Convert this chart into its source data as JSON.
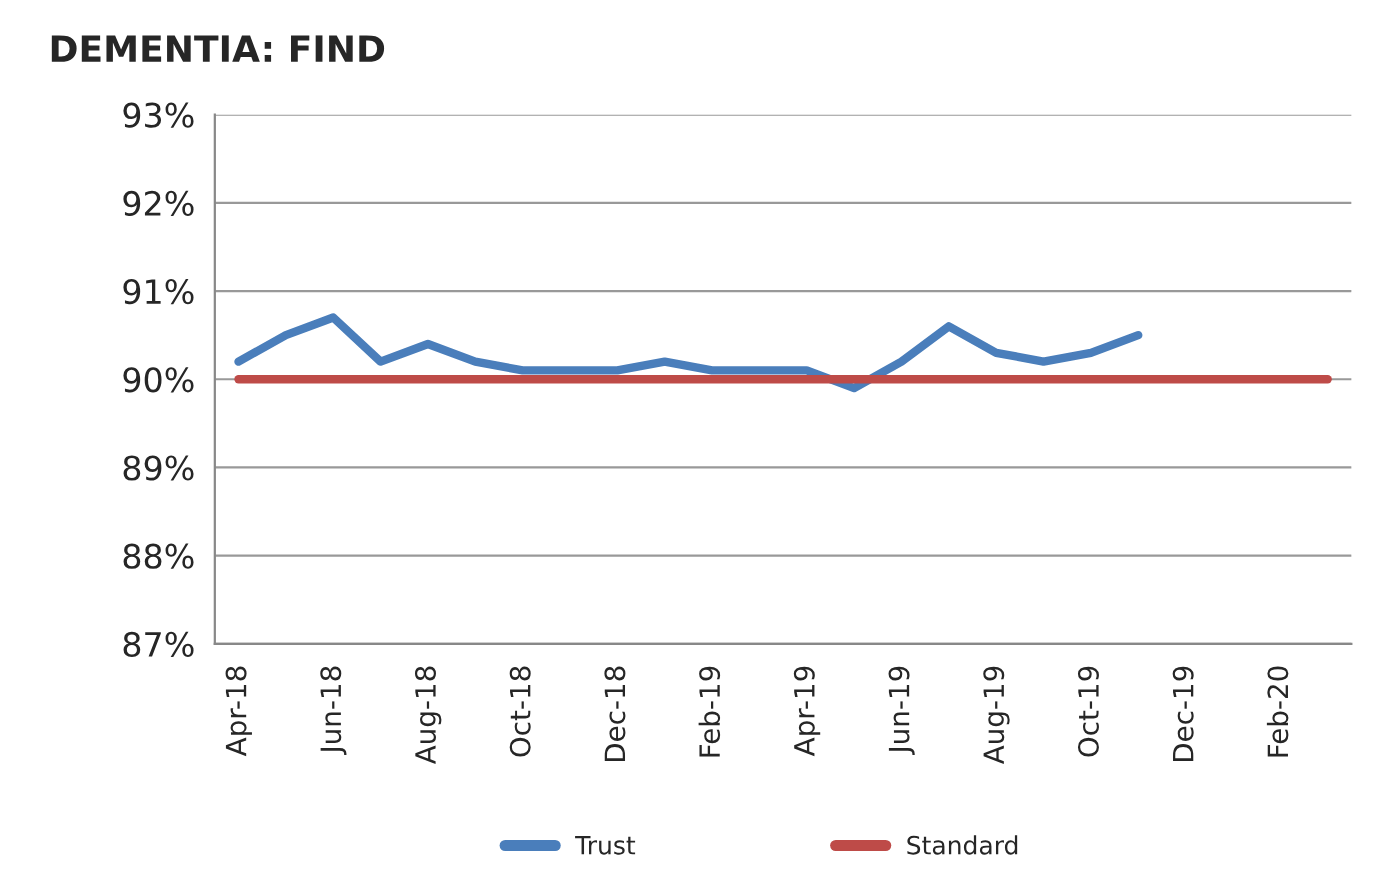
{
  "chart_data": {
    "type": "line",
    "title": "DEMENTIA: FIND",
    "categories": [
      "Apr-18",
      null,
      "Jun-18",
      null,
      "Aug-18",
      null,
      "Oct-18",
      null,
      "Dec-18",
      null,
      "Feb-19",
      null,
      "Apr-19",
      null,
      "Jun-19",
      null,
      "Aug-19",
      null,
      "Oct-19",
      null,
      "Dec-19",
      null,
      "Feb-20",
      null
    ],
    "series": [
      {
        "name": "Trust",
        "color": "#4a7ebb",
        "values": [
          90.2,
          90.5,
          90.7,
          90.2,
          90.4,
          90.2,
          90.1,
          90.1,
          90.1,
          90.2,
          90.1,
          90.1,
          90.1,
          89.9,
          90.2,
          90.6,
          90.3,
          90.2,
          90.3,
          90.5,
          null,
          null,
          null,
          null
        ]
      },
      {
        "name": "Standard",
        "color": "#be4b48",
        "values": [
          90,
          90,
          90,
          90,
          90,
          90,
          90,
          90,
          90,
          90,
          90,
          90,
          90,
          90,
          90,
          90,
          90,
          90,
          90,
          90,
          90,
          90,
          90,
          90
        ]
      }
    ],
    "ylim": [
      87,
      93
    ],
    "yticks": [
      {
        "value": 87,
        "label": "87%"
      },
      {
        "value": 88,
        "label": "88%"
      },
      {
        "value": 89,
        "label": "89%"
      },
      {
        "value": 90,
        "label": "90%"
      },
      {
        "value": 91,
        "label": "91%"
      },
      {
        "value": 92,
        "label": "92%"
      },
      {
        "value": 93,
        "label": "93%"
      }
    ],
    "grid": "y",
    "legend": "bottom",
    "marker": "none",
    "line_style": "solid"
  }
}
